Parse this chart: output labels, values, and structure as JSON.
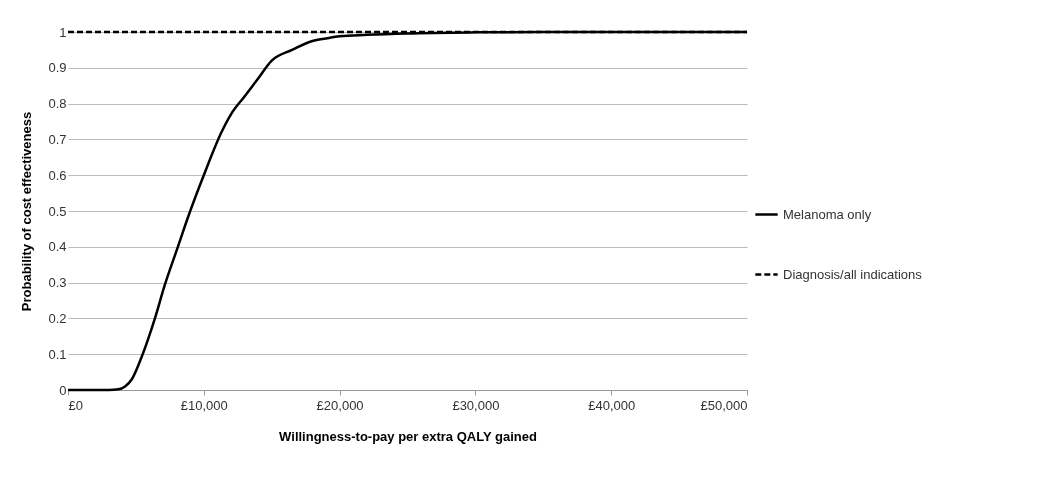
{
  "chart_data": {
    "type": "line",
    "xlabel": "Willingness-to-pay per extra QALY gained",
    "ylabel": "Probability of cost effectiveness",
    "xlim": [
      0,
      50000
    ],
    "xticks": [
      {
        "value": 0,
        "label": "£0"
      },
      {
        "value": 10000,
        "label": "£10,000"
      },
      {
        "value": 20000,
        "label": "£20,000"
      },
      {
        "value": 30000,
        "label": "£30,000"
      },
      {
        "value": 40000,
        "label": "£40,000"
      },
      {
        "value": 50000,
        "label": "£50,000"
      }
    ],
    "ylim": [
      0,
      1
    ],
    "yticks": [
      0,
      0.1,
      0.2,
      0.3,
      0.4,
      0.5,
      0.6,
      0.7,
      0.8,
      0.9,
      1
    ],
    "grid": "y",
    "legend": "right",
    "marker": "none",
    "series": [
      {
        "name": "Melanoma only",
        "color": "#000000",
        "line_style": "solid",
        "x": [
          0,
          1000,
          2000,
          3000,
          3700,
          4200,
          4700,
          5400,
          6400,
          7100,
          8000,
          9000,
          10000,
          11300,
          12000,
          13000,
          14000,
          15000,
          16500,
          18000,
          19000,
          20000,
          22000,
          25000,
          30000,
          35000,
          40000,
          50000
        ],
        "values": [
          0,
          0,
          0,
          0,
          0.002,
          0.01,
          0.03,
          0.09,
          0.2,
          0.29,
          0.39,
          0.5,
          0.6,
          0.72,
          0.77,
          0.82,
          0.87,
          0.92,
          0.95,
          0.975,
          0.982,
          0.988,
          0.992,
          0.996,
          0.999,
          1,
          1,
          1
        ]
      },
      {
        "name": "Diagnosis/all indications",
        "color": "#000000",
        "line_style": "dashed",
        "x": [
          0,
          50000
        ],
        "values": [
          1,
          1
        ]
      }
    ]
  }
}
